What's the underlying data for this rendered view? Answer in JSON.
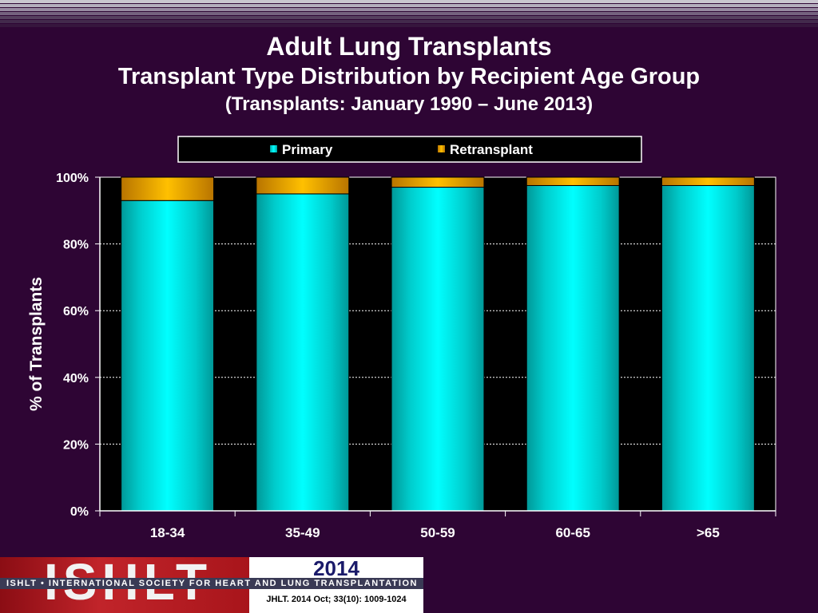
{
  "slide": {
    "title": "Adult Lung Transplants",
    "subtitle": "Transplant Type Distribution by Recipient Age Group",
    "subtitle2": "(Transplants: January 1990 – June 2013)"
  },
  "footer": {
    "logo_text": "ISHLT",
    "org_strip": "ISHLT • INTERNATIONAL SOCIETY FOR HEART AND LUNG TRANSPLANTATION",
    "year": "2014",
    "citation": "JHLT. 2014 Oct; 33(10): 1009-1024"
  },
  "colors": {
    "background": "#2e0534",
    "primary": "#00ffff",
    "retransplant": "#f5a800",
    "plot_bg": "#000000"
  },
  "chart_data": {
    "type": "bar",
    "stacked": true,
    "title": "",
    "xlabel": "",
    "ylabel": "% of Transplants",
    "categories": [
      "18-34",
      "35-49",
      "50-59",
      "60-65",
      ">65"
    ],
    "series": [
      {
        "name": "Primary",
        "values": [
          93,
          95,
          97,
          97.5,
          97.5
        ]
      },
      {
        "name": "Retransplant",
        "values": [
          7,
          5,
          3,
          2.5,
          2.5
        ]
      }
    ],
    "ylim": [
      0,
      100
    ],
    "yticks": [
      "0%",
      "20%",
      "40%",
      "60%",
      "80%",
      "100%"
    ],
    "grid": true,
    "legend_position": "top"
  }
}
